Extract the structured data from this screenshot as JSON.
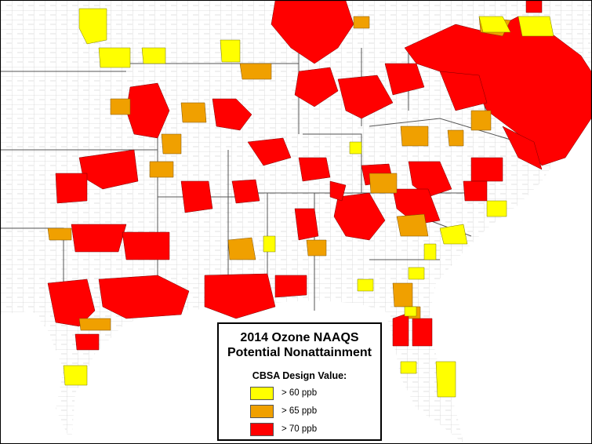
{
  "legend": {
    "title_line1": "2014 Ozone NAAQS",
    "title_line2": "Potential Nonattainment",
    "subtitle": "CBSA Design Value:",
    "items": [
      {
        "label": "> 60 ppb",
        "color": "#FFFF00"
      },
      {
        "label": "> 65 ppb",
        "color": "#F0A000"
      },
      {
        "label": "> 70 ppb",
        "color": "#FF0000"
      }
    ]
  },
  "colors": {
    "background": "#FFFFFF",
    "county_lines": "#BBBBBB",
    "state_lines": "#555555"
  }
}
